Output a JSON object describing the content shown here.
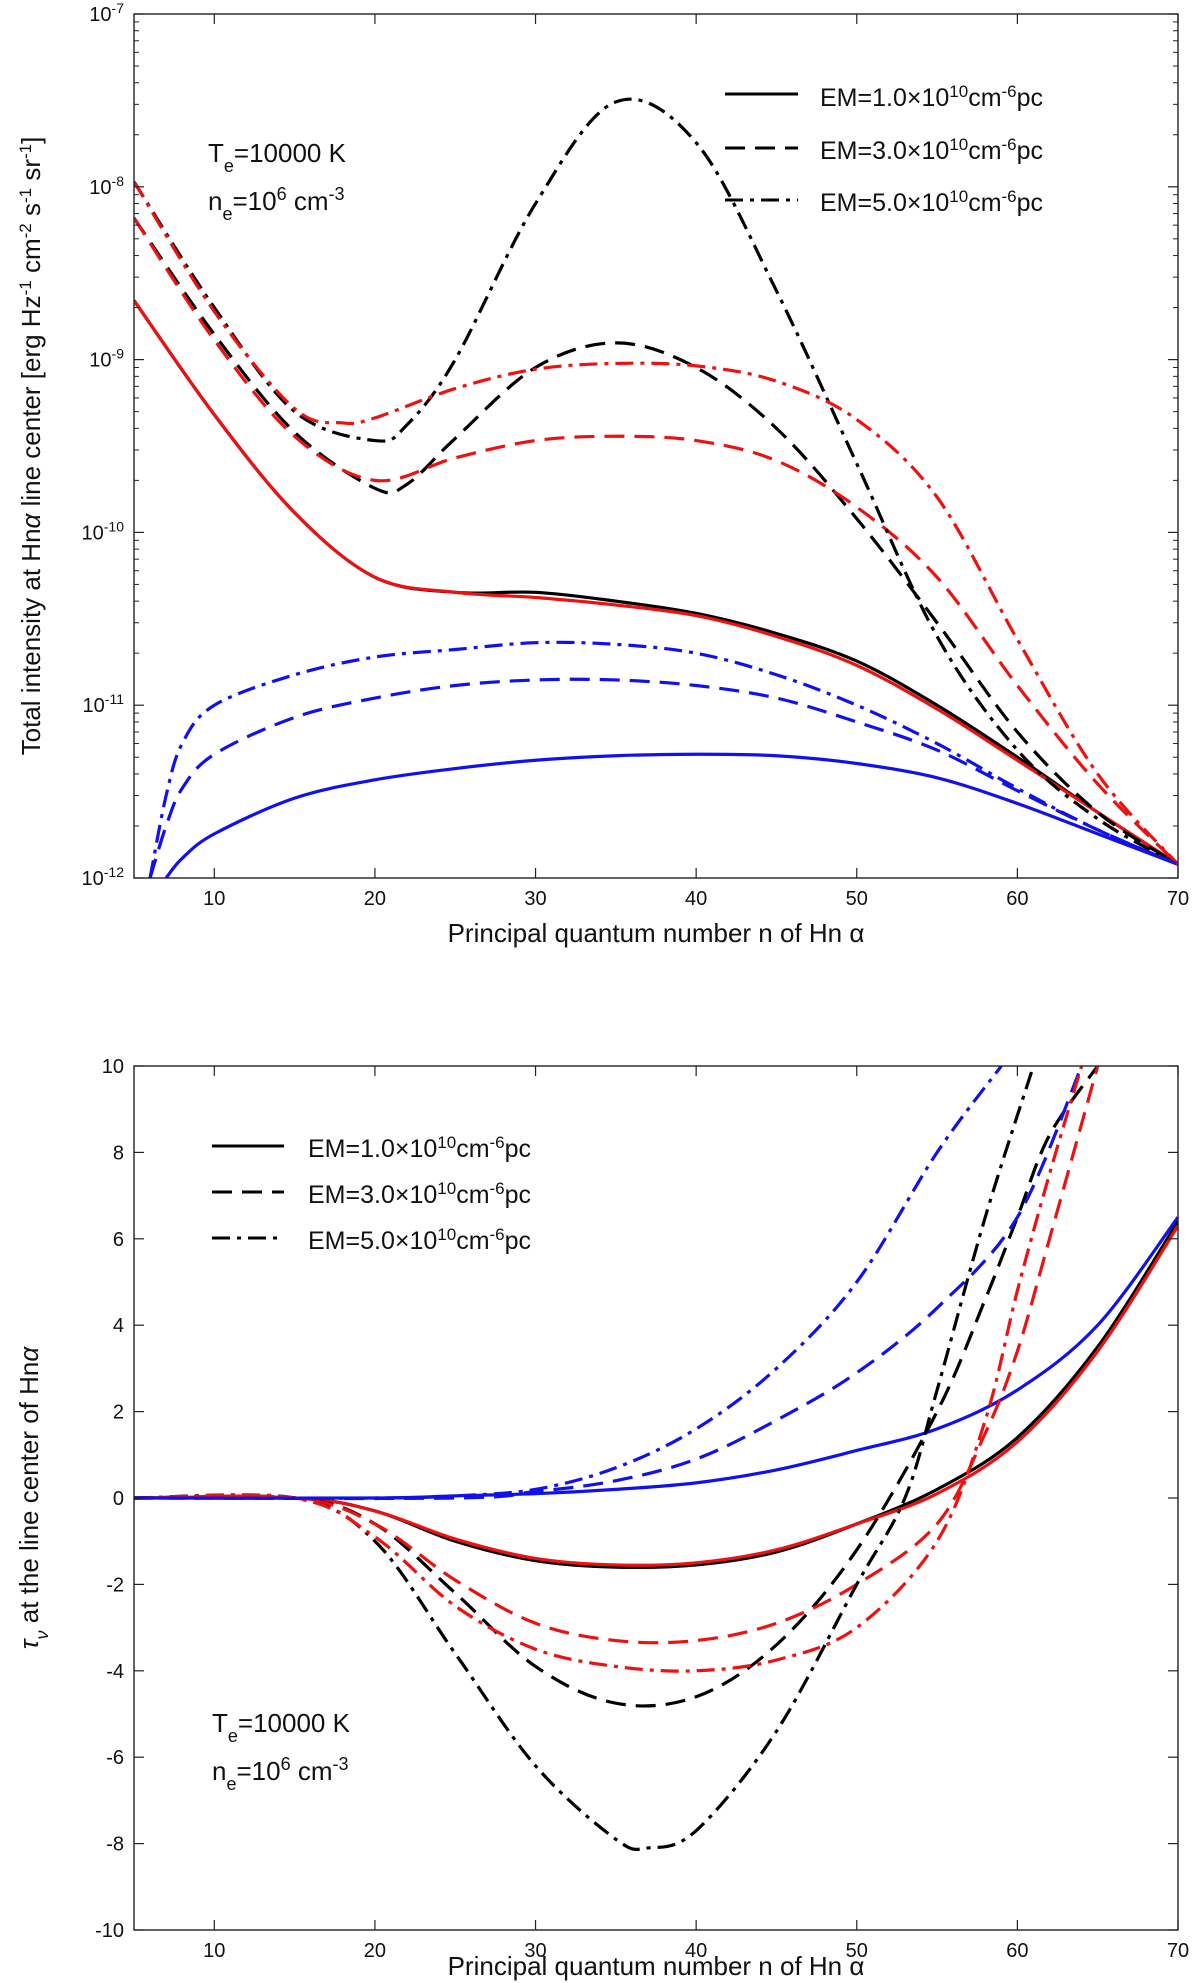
{
  "figure": {
    "annotation_T": "T",
    "annotation_T_sub": "e",
    "annotation_T_value": "=10000 K",
    "annotation_n": "n",
    "annotation_n_sub": "e",
    "annotation_n_value": "=10",
    "annotation_n_exp": "6",
    "annotation_n_unit": " cm",
    "annotation_n_unit_exp": "-3"
  },
  "legend": [
    {
      "prefix": "EM=1.0×10",
      "exp": "10",
      "unit": "cm",
      "unit_exp": "-6",
      "suffix": "pc",
      "style": "solid"
    },
    {
      "prefix": "EM=3.0×10",
      "exp": "10",
      "unit": "cm",
      "unit_exp": "-6",
      "suffix": "pc",
      "style": "dashed"
    },
    {
      "prefix": "EM=5.0×10",
      "exp": "10",
      "unit": "cm",
      "unit_exp": "-6",
      "suffix": "pc",
      "style": "dashdot"
    }
  ],
  "colors": {
    "black": "#000000",
    "red": "#ee1111",
    "blue": "#1111ee"
  },
  "chart_data": [
    {
      "type": "line",
      "yscale": "log",
      "xlabel": "Principal quantum number n of Hn α",
      "ylabel": "Total intensity at Hnα line center [erg Hz-1 cm-2 s-1 sr-1]",
      "xlim": [
        5,
        70
      ],
      "ylim": [
        1e-12,
        1e-07
      ],
      "xticks": [
        10,
        20,
        30,
        40,
        50,
        60,
        70
      ],
      "yticks": [
        {
          "base": "10",
          "exp": "-12"
        },
        {
          "base": "10",
          "exp": "-11"
        },
        {
          "base": "10",
          "exp": "-10"
        },
        {
          "base": "10",
          "exp": "-9"
        },
        {
          "base": "10",
          "exp": "-8"
        },
        {
          "base": "10",
          "exp": "-7"
        }
      ],
      "series": [
        {
          "name": "black EM=1.0e10",
          "color": "black",
          "style": "solid",
          "x": [
            5,
            10,
            15,
            20,
            25,
            30,
            35,
            40,
            45,
            50,
            55,
            60,
            65,
            70
          ],
          "y": [
            2.2e-09,
            4.8e-10,
            1.3e-10,
            5.5e-11,
            4.5e-11,
            4.5e-11,
            4e-11,
            3.4e-11,
            2.6e-11,
            1.8e-11,
            1e-11,
            5e-12,
            2.4e-12,
            1.2e-12
          ]
        },
        {
          "name": "red EM=1.0e10",
          "color": "red",
          "style": "solid",
          "x": [
            5,
            10,
            15,
            20,
            25,
            30,
            35,
            40,
            45,
            50,
            55,
            60,
            65,
            70
          ],
          "y": [
            2.2e-09,
            4.8e-10,
            1.3e-10,
            5.5e-11,
            4.5e-11,
            4.2e-11,
            3.8e-11,
            3.3e-11,
            2.5e-11,
            1.7e-11,
            9.5e-12,
            4.8e-12,
            2.4e-12,
            1.2e-12
          ]
        },
        {
          "name": "blue EM=1.0e10",
          "color": "blue",
          "style": "solid",
          "x": [
            7,
            8,
            10,
            15,
            20,
            25,
            30,
            35,
            40,
            45,
            50,
            55,
            60,
            65,
            70
          ],
          "y": [
            1e-12,
            1.3e-12,
            1.8e-12,
            2.9e-12,
            3.7e-12,
            4.3e-12,
            4.8e-12,
            5.1e-12,
            5.2e-12,
            5.1e-12,
            4.6e-12,
            3.8e-12,
            2.7e-12,
            1.8e-12,
            1.2e-12
          ]
        },
        {
          "name": "black EM=3.0e10",
          "color": "black",
          "style": "dashed",
          "x": [
            5,
            10,
            15,
            20,
            22,
            25,
            30,
            35,
            40,
            45,
            50,
            55,
            60,
            65,
            70
          ],
          "y": [
            6.6e-09,
            1.4e-09,
            3.8e-10,
            1.8e-10,
            1.9e-10,
            3.5e-10,
            9e-10,
            1.25e-09,
            9e-10,
            4e-10,
            1.2e-10,
            3e-11,
            7e-12,
            2.4e-12,
            1.2e-12
          ]
        },
        {
          "name": "red EM=3.0e10",
          "color": "red",
          "style": "dashed",
          "x": [
            5,
            10,
            15,
            20,
            25,
            30,
            35,
            40,
            45,
            50,
            55,
            60,
            65,
            70
          ],
          "y": [
            6.6e-09,
            1.3e-09,
            3.6e-10,
            2e-10,
            2.7e-10,
            3.4e-10,
            3.6e-10,
            3.4e-10,
            2.6e-10,
            1.4e-10,
            5.5e-11,
            1.3e-11,
            3.5e-12,
            1.2e-12
          ]
        },
        {
          "name": "blue EM=3.0e10",
          "color": "blue",
          "style": "dashed",
          "x": [
            6,
            7,
            8,
            10,
            15,
            20,
            25,
            30,
            35,
            40,
            45,
            50,
            55,
            60,
            65,
            70
          ],
          "y": [
            1e-12,
            2e-12,
            3.3e-12,
            5.2e-12,
            8.5e-12,
            1.1e-11,
            1.3e-11,
            1.4e-11,
            1.4e-11,
            1.3e-11,
            1.1e-11,
            8e-12,
            5.5e-12,
            3.2e-12,
            1.9e-12,
            1.2e-12
          ]
        },
        {
          "name": "black EM=5.0e10",
          "color": "black",
          "style": "dashdot",
          "x": [
            5,
            10,
            15,
            20,
            22,
            25,
            30,
            35,
            40,
            45,
            50,
            55,
            60,
            65,
            70
          ],
          "y": [
            1.07e-08,
            2e-09,
            5e-10,
            3.4e-10,
            4.2e-10,
            1e-09,
            8e-09,
            3.1e-08,
            1.8e-08,
            2.5e-09,
            2.5e-10,
            2.5e-11,
            5.5e-12,
            2.2e-12,
            1.2e-12
          ]
        },
        {
          "name": "red EM=5.0e10",
          "color": "red",
          "style": "dashdot",
          "x": [
            5,
            10,
            15,
            18,
            20,
            25,
            30,
            35,
            40,
            45,
            50,
            55,
            60,
            65,
            70
          ],
          "y": [
            1.07e-08,
            1.9e-09,
            5.2e-10,
            4.3e-10,
            4.6e-10,
            6.8e-10,
            8.8e-10,
            9.5e-10,
            9.2e-10,
            7.5e-10,
            4.5e-10,
            1.6e-10,
            2.4e-11,
            4e-12,
            1.2e-12
          ]
        },
        {
          "name": "blue EM=5.0e10",
          "color": "blue",
          "style": "dashdot",
          "x": [
            6,
            7,
            8,
            10,
            15,
            20,
            25,
            30,
            35,
            40,
            45,
            50,
            55,
            60,
            65,
            70
          ],
          "y": [
            1e-12,
            3e-12,
            6e-12,
            1e-11,
            1.5e-11,
            1.9e-11,
            2.1e-11,
            2.3e-11,
            2.25e-11,
            2e-11,
            1.5e-11,
            1e-11,
            6e-12,
            3.3e-12,
            1.9e-12,
            1.2e-12
          ]
        }
      ]
    },
    {
      "type": "line",
      "yscale": "linear",
      "xlabel": "Principal quantum number n of Hn α",
      "ylabel": "τ ν at the line center of Hnα",
      "xlim": [
        5,
        70
      ],
      "ylim": [
        -10,
        10
      ],
      "xticks": [
        10,
        20,
        30,
        40,
        50,
        60,
        70
      ],
      "yticks": [
        -10,
        -8,
        -6,
        -4,
        -2,
        0,
        2,
        4,
        6,
        8,
        10
      ],
      "series": [
        {
          "name": "black EM=1.0e10",
          "color": "black",
          "style": "solid",
          "x": [
            5,
            15,
            20,
            25,
            30,
            35,
            40,
            45,
            50,
            55,
            60,
            65,
            70
          ],
          "y": [
            0,
            0,
            -0.3,
            -1.0,
            -1.45,
            -1.6,
            -1.55,
            -1.25,
            -0.6,
            0.2,
            1.4,
            3.5,
            6.4
          ]
        },
        {
          "name": "red EM=1.0e10",
          "color": "red",
          "style": "solid",
          "x": [
            5,
            15,
            20,
            25,
            30,
            35,
            40,
            45,
            50,
            55,
            60,
            65,
            70
          ],
          "y": [
            0,
            0,
            -0.3,
            -0.95,
            -1.4,
            -1.55,
            -1.5,
            -1.2,
            -0.6,
            0.1,
            1.3,
            3.4,
            6.3
          ]
        },
        {
          "name": "blue EM=1.0e10",
          "color": "blue",
          "style": "solid",
          "x": [
            5,
            20,
            25,
            30,
            35,
            40,
            45,
            50,
            55,
            60,
            65,
            70
          ],
          "y": [
            0,
            0,
            0.05,
            0.1,
            0.2,
            0.35,
            0.65,
            1.1,
            1.6,
            2.5,
            4.0,
            6.5
          ]
        },
        {
          "name": "black EM=3.0e10",
          "color": "black",
          "style": "dashed",
          "x": [
            5,
            15,
            20,
            25,
            30,
            35,
            40,
            45,
            50,
            55,
            58,
            60,
            62,
            65
          ],
          "y": [
            0,
            0,
            -0.6,
            -2.2,
            -3.9,
            -4.75,
            -4.6,
            -3.4,
            -1.2,
            2.0,
            4.6,
            6.5,
            8.4,
            10
          ]
        },
        {
          "name": "red EM=3.0e10",
          "color": "red",
          "style": "dashed",
          "x": [
            5,
            15,
            20,
            25,
            30,
            35,
            40,
            45,
            50,
            55,
            58,
            60,
            62,
            65
          ],
          "y": [
            0,
            0,
            -0.6,
            -1.9,
            -2.9,
            -3.3,
            -3.3,
            -2.9,
            -2.0,
            -0.6,
            1.5,
            3.4,
            6.0,
            10
          ]
        },
        {
          "name": "blue EM=3.0e10",
          "color": "blue",
          "style": "dashed",
          "x": [
            5,
            25,
            30,
            35,
            40,
            45,
            50,
            55,
            60,
            64
          ],
          "y": [
            0,
            0,
            0.15,
            0.4,
            0.9,
            1.8,
            2.9,
            4.4,
            6.5,
            10
          ]
        },
        {
          "name": "black EM=5.0e10",
          "color": "black",
          "style": "dashdot",
          "x": [
            5,
            15,
            20,
            25,
            30,
            35,
            37,
            40,
            45,
            50,
            53,
            55,
            58,
            61
          ],
          "y": [
            0,
            0,
            -1.0,
            -3.6,
            -6.2,
            -7.9,
            -8.1,
            -7.7,
            -5.4,
            -2.0,
            0.0,
            2.5,
            6.5,
            10
          ]
        },
        {
          "name": "red EM=5.0e10",
          "color": "red",
          "style": "dashdot",
          "x": [
            5,
            15,
            20,
            25,
            30,
            35,
            40,
            45,
            50,
            55,
            58,
            60,
            62,
            64
          ],
          "y": [
            0,
            0,
            -0.9,
            -2.5,
            -3.5,
            -3.9,
            -4.0,
            -3.75,
            -3.0,
            -1.0,
            1.8,
            4.8,
            7.5,
            10
          ]
        },
        {
          "name": "blue EM=5.0e10",
          "color": "blue",
          "style": "dashdot",
          "x": [
            5,
            20,
            25,
            30,
            35,
            40,
            45,
            50,
            55,
            59
          ],
          "y": [
            0,
            0,
            0.05,
            0.2,
            0.7,
            1.6,
            3.0,
            5.0,
            8.0,
            10
          ]
        }
      ]
    }
  ]
}
